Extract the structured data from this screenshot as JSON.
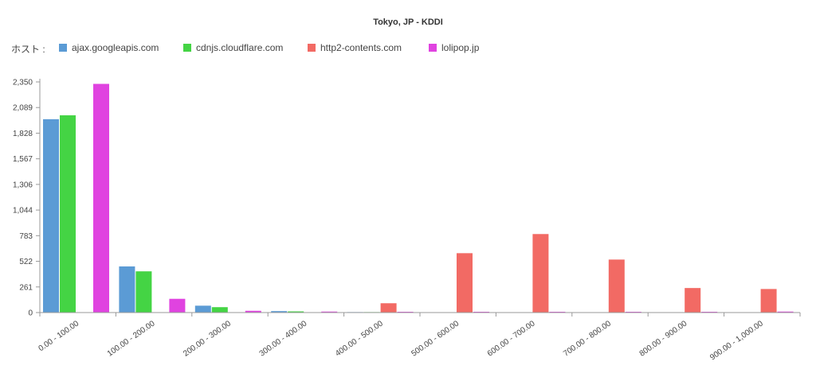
{
  "chart_data": {
    "type": "bar",
    "title": "Tokyo, JP - KDDI",
    "legend_label": "ホスト :",
    "legend_position": "top-left",
    "grid": false,
    "ylim": [
      0,
      2350
    ],
    "yticks": [
      "0",
      "261",
      "522",
      "783",
      "1,044",
      "1,306",
      "1,567",
      "1,828",
      "2,089",
      "2,350"
    ],
    "categories": [
      "0.00 - 100.00",
      "100.00 - 200.00",
      "200.00 - 300.00",
      "300.00 - 400.00",
      "400.00 - 500.00",
      "500.00 - 600.00",
      "600.00 - 700.00",
      "700.00 - 800.00",
      "800.00 - 900.00",
      "900.00 - 1,000.00"
    ],
    "series": [
      {
        "name": "ajax.googleapis.com",
        "color": "#5b9bd5",
        "values": [
          1970,
          470,
          70,
          15,
          5,
          3,
          2,
          2,
          2,
          2
        ]
      },
      {
        "name": "cdnjs.cloudflare.com",
        "color": "#44d444",
        "values": [
          2010,
          420,
          55,
          12,
          5,
          3,
          3,
          2,
          2,
          2
        ]
      },
      {
        "name": "http2-contents.com",
        "color": "#f26a64",
        "values": [
          0,
          0,
          0,
          0,
          95,
          605,
          800,
          540,
          250,
          240
        ]
      },
      {
        "name": "lolipop.jp",
        "color": "#e043e0",
        "values": [
          2330,
          140,
          18,
          10,
          8,
          8,
          8,
          8,
          8,
          10
        ]
      }
    ]
  }
}
